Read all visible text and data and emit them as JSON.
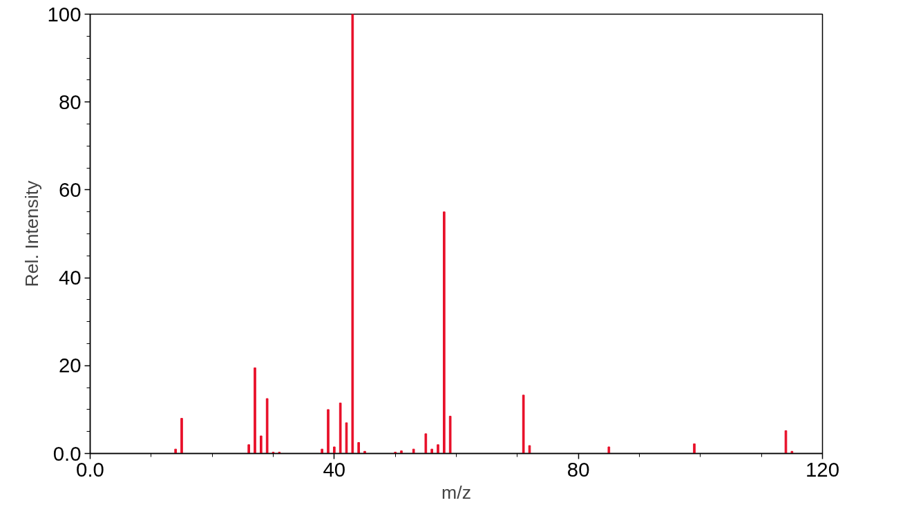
{
  "chart_data": {
    "type": "bar",
    "xlabel": "m/z",
    "ylabel": "Rel. Intensity",
    "color": "#e8102a",
    "x": [
      14,
      15,
      26,
      27,
      28,
      29,
      30,
      31,
      38,
      39,
      40,
      41,
      42,
      43,
      44,
      45,
      50,
      51,
      53,
      55,
      56,
      57,
      58,
      59,
      71,
      72,
      85,
      99,
      114,
      115
    ],
    "values": [
      1,
      8,
      2,
      19.5,
      4,
      12.5,
      0.3,
      0.3,
      1,
      10,
      1.5,
      11.5,
      7,
      100,
      2.5,
      0.5,
      0.3,
      0.6,
      1,
      4.5,
      1,
      2,
      55,
      8.5,
      13.3,
      1.8,
      1.5,
      2.2,
      5.2,
      0.5
    ],
    "xlim": [
      0,
      120
    ],
    "ylim": [
      0,
      100
    ],
    "xticks": [
      {
        "value": 0,
        "label": "0.0"
      },
      40,
      80,
      120
    ],
    "yticks": [
      {
        "value": 0,
        "label": "0.0"
      },
      20,
      40,
      60,
      80,
      100
    ],
    "grid": false
  }
}
